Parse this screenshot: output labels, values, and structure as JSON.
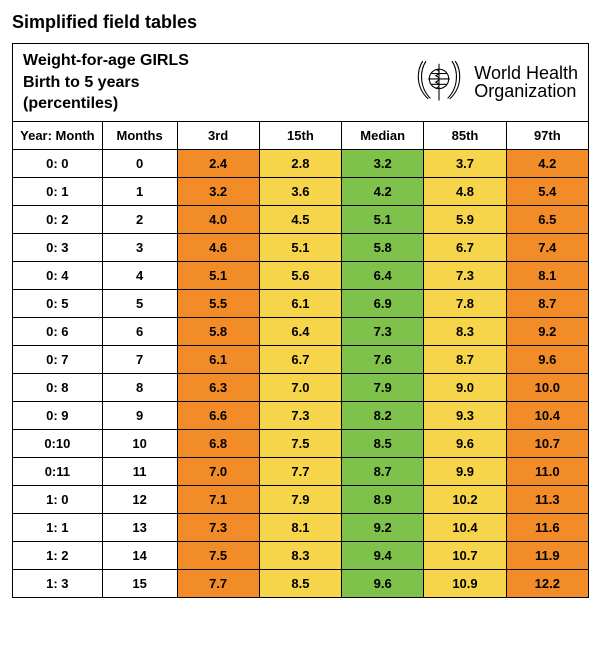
{
  "page_title": "Simplified field tables",
  "header": {
    "line1": "Weight-for-age  GIRLS",
    "line2": "Birth to 5 years",
    "line3": "(percentiles)",
    "org1": "World Health",
    "org2": "Organization"
  },
  "columns": [
    "Year: Month",
    "Months",
    "3rd",
    "15th",
    "Median",
    "85th",
    "97th"
  ],
  "column_colors": [
    "#ffffff",
    "#ffffff",
    "#f28c28",
    "#f7d54a",
    "#7fc24b",
    "#f7d54a",
    "#f28c28"
  ],
  "rows": [
    {
      "ym": "0: 0",
      "m": "0",
      "p3": "2.4",
      "p15": "2.8",
      "med": "3.2",
      "p85": "3.7",
      "p97": "4.2"
    },
    {
      "ym": "0: 1",
      "m": "1",
      "p3": "3.2",
      "p15": "3.6",
      "med": "4.2",
      "p85": "4.8",
      "p97": "5.4"
    },
    {
      "ym": "0: 2",
      "m": "2",
      "p3": "4.0",
      "p15": "4.5",
      "med": "5.1",
      "p85": "5.9",
      "p97": "6.5"
    },
    {
      "ym": "0: 3",
      "m": "3",
      "p3": "4.6",
      "p15": "5.1",
      "med": "5.8",
      "p85": "6.7",
      "p97": "7.4"
    },
    {
      "ym": "0: 4",
      "m": "4",
      "p3": "5.1",
      "p15": "5.6",
      "med": "6.4",
      "p85": "7.3",
      "p97": "8.1"
    },
    {
      "ym": "0: 5",
      "m": "5",
      "p3": "5.5",
      "p15": "6.1",
      "med": "6.9",
      "p85": "7.8",
      "p97": "8.7"
    },
    {
      "ym": "0: 6",
      "m": "6",
      "p3": "5.8",
      "p15": "6.4",
      "med": "7.3",
      "p85": "8.3",
      "p97": "9.2"
    },
    {
      "ym": "0: 7",
      "m": "7",
      "p3": "6.1",
      "p15": "6.7",
      "med": "7.6",
      "p85": "8.7",
      "p97": "9.6"
    },
    {
      "ym": "0: 8",
      "m": "8",
      "p3": "6.3",
      "p15": "7.0",
      "med": "7.9",
      "p85": "9.0",
      "p97": "10.0"
    },
    {
      "ym": "0: 9",
      "m": "9",
      "p3": "6.6",
      "p15": "7.3",
      "med": "8.2",
      "p85": "9.3",
      "p97": "10.4"
    },
    {
      "ym": "0:10",
      "m": "10",
      "p3": "6.8",
      "p15": "7.5",
      "med": "8.5",
      "p85": "9.6",
      "p97": "10.7"
    },
    {
      "ym": "0:11",
      "m": "11",
      "p3": "7.0",
      "p15": "7.7",
      "med": "8.7",
      "p85": "9.9",
      "p97": "11.0"
    },
    {
      "ym": "1: 0",
      "m": "12",
      "p3": "7.1",
      "p15": "7.9",
      "med": "8.9",
      "p85": "10.2",
      "p97": "11.3"
    },
    {
      "ym": "1: 1",
      "m": "13",
      "p3": "7.3",
      "p15": "8.1",
      "med": "9.2",
      "p85": "10.4",
      "p97": "11.6"
    },
    {
      "ym": "1: 2",
      "m": "14",
      "p3": "7.5",
      "p15": "8.3",
      "med": "9.4",
      "p85": "10.7",
      "p97": "11.9"
    },
    {
      "ym": "1: 3",
      "m": "15",
      "p3": "7.7",
      "p15": "8.5",
      "med": "9.6",
      "p85": "10.9",
      "p97": "12.2"
    }
  ],
  "style": {
    "background_color": "#ffffff",
    "border_color": "#000000",
    "font_family": "Arial",
    "cell_font_size": 13,
    "cell_font_weight": "bold",
    "title_font_size": 18,
    "header_font_size": 16
  }
}
